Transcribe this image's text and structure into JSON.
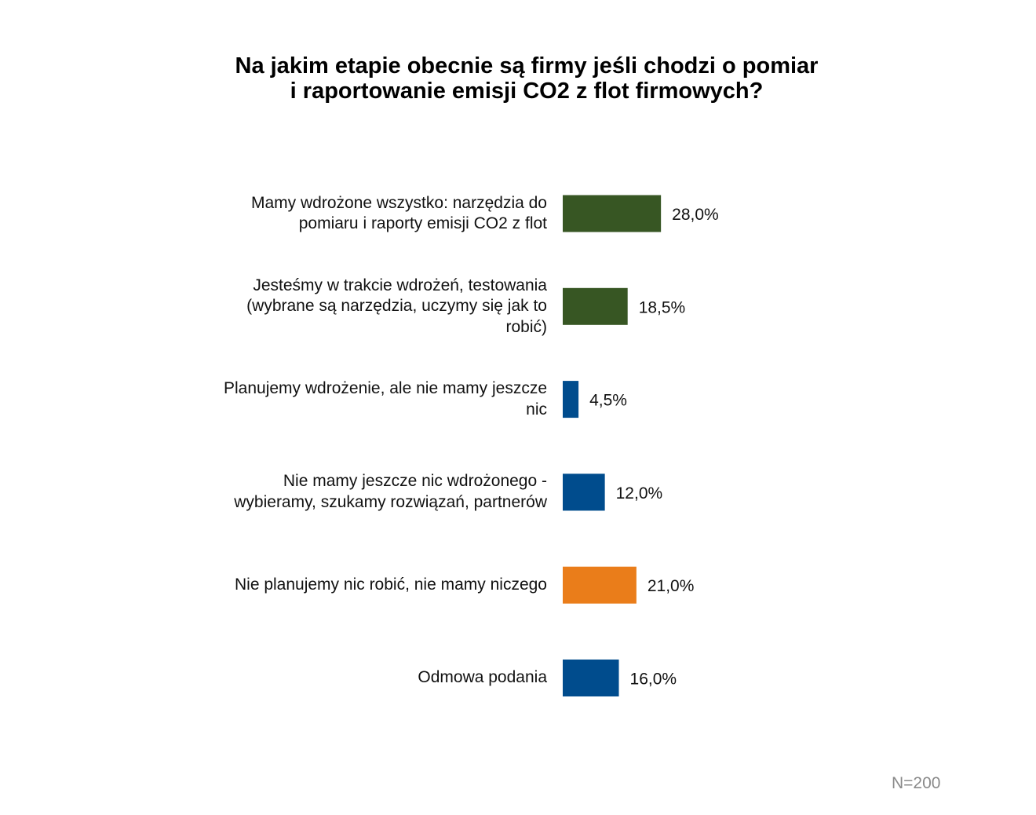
{
  "chart_data": {
    "type": "bar",
    "orientation": "horizontal",
    "title_lines": [
      "Na jakim etapie obecnie są firmy jeśli chodzi o pomiar",
      "i raportowanie emisji CO2 z flot firmowych?"
    ],
    "categories": [
      {
        "lines": [
          "Mamy wdrożone wszystko: narzędzia do",
          "pomiaru i raporty emisji CO2 z flot"
        ],
        "value": 28.0,
        "value_label": "28,0%",
        "color": "#375623"
      },
      {
        "lines": [
          "Jesteśmy w trakcie wdrożeń, testowania",
          "(wybrane są narzędzia, uczymy się jak to",
          "robić)"
        ],
        "value": 18.5,
        "value_label": "18,5%",
        "color": "#375623"
      },
      {
        "lines": [
          "Planujemy wdrożenie, ale nie mamy jeszcze",
          "nic"
        ],
        "value": 4.5,
        "value_label": "4,5%",
        "color": "#004C8D"
      },
      {
        "lines": [
          "Nie mamy jeszcze nic wdrożonego -",
          "wybieramy, szukamy rozwiązań, partnerów"
        ],
        "value": 12.0,
        "value_label": "12,0%",
        "color": "#004C8D"
      },
      {
        "lines": [
          "Nie planujemy nic robić, nie mamy niczego"
        ],
        "value": 21.0,
        "value_label": "21,0%",
        "color": "#EA7D1A"
      },
      {
        "lines": [
          "Odmowa podania"
        ],
        "value": 16.0,
        "value_label": "16,0%",
        "color": "#004C8D"
      }
    ],
    "unit": "%",
    "xlim": [
      0,
      100
    ],
    "legend": "none",
    "grid": false,
    "note": "N=200"
  }
}
